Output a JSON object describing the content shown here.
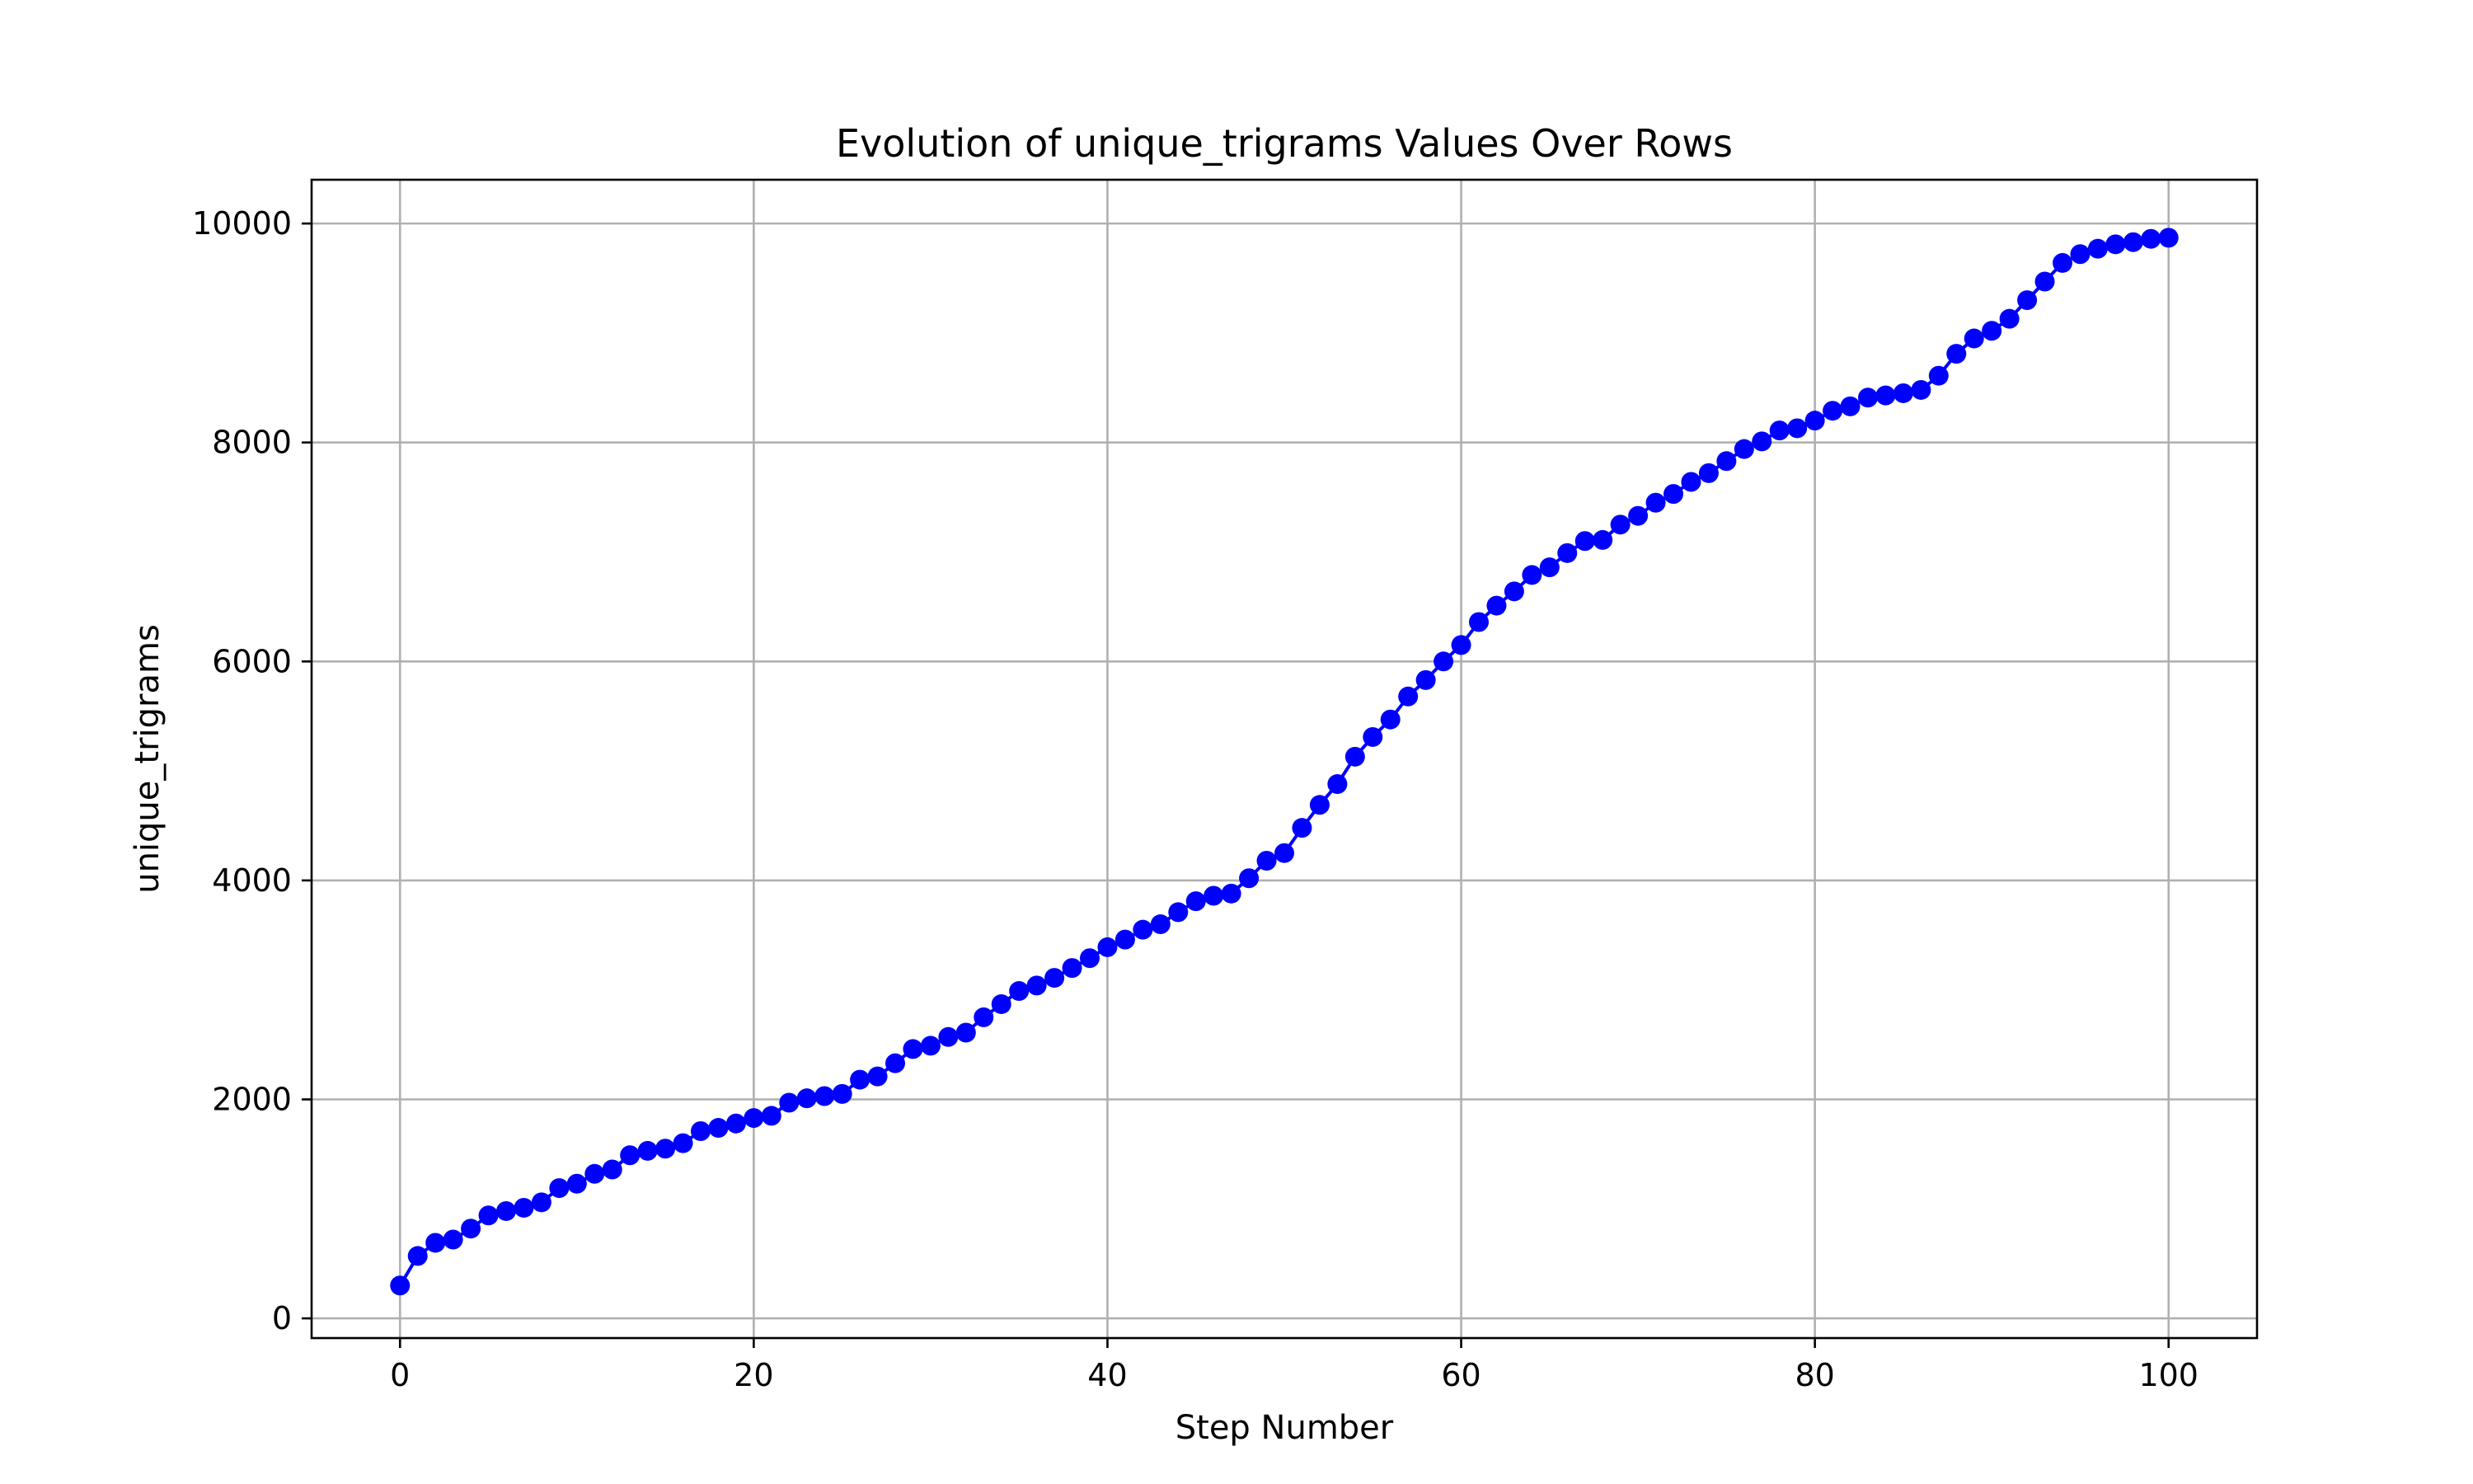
{
  "chart_data": {
    "type": "line",
    "title": "Evolution of unique_trigrams Values Over Rows",
    "xlabel": "Step Number",
    "ylabel": "unique_trigrams",
    "xlim": [
      -5,
      105
    ],
    "ylim": [
      -180,
      10400
    ],
    "xticks": [
      0,
      20,
      40,
      60,
      80,
      100
    ],
    "yticks": [
      0,
      2000,
      4000,
      6000,
      8000,
      10000
    ],
    "grid": true,
    "marker": "circle",
    "color": "#0000ff",
    "series": [
      {
        "x": [
          0,
          1,
          2,
          3,
          4,
          5,
          6,
          7,
          8,
          9,
          10,
          11,
          12,
          13,
          14,
          15,
          16,
          17,
          18,
          19,
          20,
          21,
          22,
          23,
          24,
          25,
          26,
          27,
          28,
          29,
          30,
          31,
          32,
          33,
          34,
          35,
          36,
          37,
          38,
          39,
          40,
          41,
          42,
          43,
          44,
          45,
          46,
          47,
          48,
          49,
          50,
          51,
          52,
          53,
          54,
          55,
          56,
          57,
          58,
          59,
          60,
          61,
          62,
          63,
          64,
          65,
          66,
          67,
          68,
          69,
          70,
          71,
          72,
          73,
          74,
          75,
          76,
          77,
          78,
          79,
          80,
          81,
          82,
          83,
          84,
          85,
          86,
          87,
          88,
          89,
          90,
          91,
          92,
          93,
          94,
          95,
          96,
          97,
          98,
          99,
          100
        ],
        "y": [
          300,
          570,
          690,
          720,
          820,
          940,
          980,
          1010,
          1060,
          1190,
          1230,
          1320,
          1360,
          1490,
          1530,
          1550,
          1600,
          1710,
          1740,
          1780,
          1830,
          1850,
          1970,
          2010,
          2030,
          2050,
          2180,
          2210,
          2330,
          2460,
          2490,
          2570,
          2610,
          2750,
          2870,
          2990,
          3040,
          3110,
          3200,
          3290,
          3390,
          3460,
          3550,
          3600,
          3710,
          3810,
          3860,
          3880,
          4020,
          4180,
          4250,
          4480,
          4690,
          4880,
          5130,
          5310,
          5470,
          5680,
          5830,
          6000,
          6150,
          6360,
          6510,
          6640,
          6790,
          6860,
          6990,
          7100,
          7110,
          7250,
          7330,
          7450,
          7530,
          7640,
          7720,
          7830,
          7940,
          8010,
          8110,
          8130,
          8200,
          8290,
          8330,
          8410,
          8430,
          8450,
          8480,
          8610,
          8810,
          8950,
          9020,
          9130,
          9300,
          9470,
          9640,
          9720,
          9770,
          9810,
          9830,
          9860,
          9870
        ]
      }
    ]
  }
}
